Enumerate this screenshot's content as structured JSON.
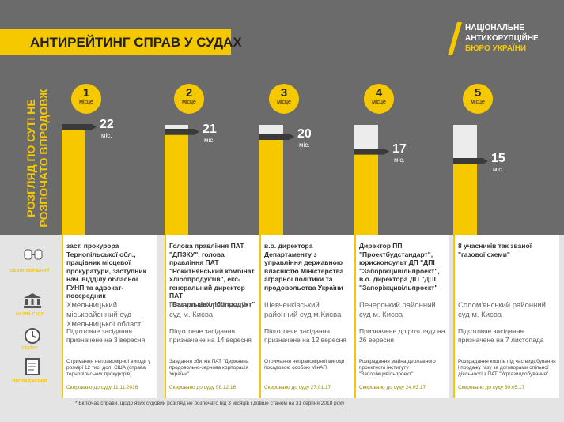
{
  "header": {
    "title": "АНТИРЕЙТИНГ СПРАВ У СУДАХ",
    "logo": [
      "НАЦІОНАЛЬНЕ",
      "АНТИКОРУПЦІЙНЕ",
      "БЮРО УКРАЇНИ"
    ]
  },
  "chart_data": {
    "type": "bar",
    "label_lines": [
      "РОЗГЛЯД ПО СУТІ НЕ",
      "РОЗПОЧАТО ВПРОДОВЖ"
    ],
    "categories": [
      "1",
      "2",
      "3",
      "4",
      "5"
    ],
    "category_suffix": "місце",
    "values": [
      22,
      21,
      20,
      17,
      15
    ],
    "unit": "міс.",
    "color": "#f6c800"
  },
  "row_labels": [
    "ОБВИНУВАЧЕНИЙ",
    "НАЗВА СУДУ",
    "СТАТУС",
    "ПРОВАДЖЕННЯ"
  ],
  "cases": [
    {
      "accused": "заст. прокурора Тернопільської обл., працівник місцевої прокуратури, заступник нач. відділу обласної ГУНП та адвокат-посередник",
      "court": "Хмельницький міськрайонний суд Хмельницької області",
      "status": "Підготовче засідання призначене на 3 вересня",
      "case": "Отримання неправомірної вигоди у розмірі 12 тис. дол. США (справа тернопільських прокурорів)",
      "sent": "Скеровано до суду 11.11.2016"
    },
    {
      "accused": "Голова правління ПАТ \"ДПЗКУ\", голова правління ПАТ \"Рокитнянський комбінат хлібопродуктів\", екс-генеральний директор ПАТ \"Васильківхлібопродукт\"",
      "court": "Печерський районний суд м. Києва",
      "status": "Підготовче засідання призначене на 14 вересня",
      "case": "Завдання збитків ПАТ \"Державна продовольчо-зернова корпорація України\"",
      "sent": "Скеровано до суду 08.12.16"
    },
    {
      "accused": "в.о. директора Департаменту з управління державною власністю Міністерства аграрної політики та продовольства України",
      "court": "Шевченківський районний суд м.Києва",
      "status": "Підготовче засідання призначене на 12 вересня",
      "case": "Отримання неправомірної вигоди посадовою особою МінАП",
      "sent": "Скеровано до суду 27.01.17"
    },
    {
      "accused": "Директор ПП \"Проектбудстандарт\", юрисконсульт ДП \"ДПІ \"Запоріжцивільпроект\", в.о. директора ДП \"ДПІ \"Запоріжцивільпроект\"",
      "court": "Печерський районний суд м. Києва",
      "status": "Призначене до розгляду на 26 вересня",
      "case": "Розкрадання майна державного проектного інституту \"Запоріжцивільпроект\"",
      "sent": "Скеровано до суду 24.03.17"
    },
    {
      "accused": "8 учасників так званої \"газової схеми\"",
      "court": "Солом'янський районний суд м. Києва",
      "status": "Підготовче засідання призначене на 7 листопада",
      "case": "Розкрадання коштів під час видобування і продажу газу за договорами спільної діяльності з ПАТ \"Укргазвидобування\"",
      "sent": "Скеровано до суду 30.05.17"
    }
  ],
  "footnote": "* Включає справи, щодо яких судовий розгляд не розпочато від 3 місяців і довше станом на 31 серпня 2018 року"
}
